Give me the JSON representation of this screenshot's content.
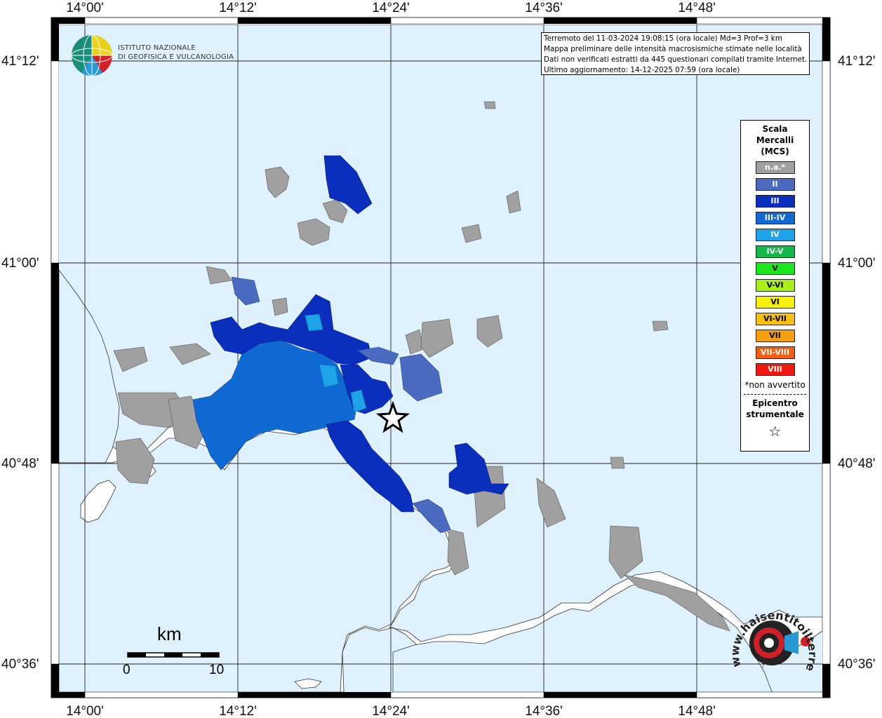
{
  "map": {
    "top_ticks": [
      "14°00'",
      "14°12'",
      "14°24'",
      "14°36'",
      "14°48'"
    ],
    "bottom_ticks": [
      "14°00'",
      "14°12'",
      "14°24'",
      "14°36'",
      "14°48'"
    ],
    "left_ticks": [
      "41°12'",
      "41°00'",
      "40°48'",
      "40°36'"
    ],
    "right_ticks": [
      "41°12'",
      "41°00'",
      "40°48'",
      "40°36'"
    ],
    "colors": {
      "sea": "#dff1fc",
      "land": "#ffffff",
      "na": "#a0a0a0",
      "II": "#4a6bc0",
      "III": "#0a2fbd",
      "III-IV": "#0f6ad4",
      "IV": "#1ea3e8"
    }
  },
  "info": {
    "line1": "Terremoto del 11-03-2024 19:08:15 (ora locale) Md=3 Prof=3 km",
    "line2": "Mappa preliminare delle intensità macrosismiche stimate nelle località",
    "line3": "Dati non verificati estratti da 445 questionari compilati tramite Internet.",
    "line4": "Ultimo aggiornamento: 14-12-2025 07:59 (ora locale)"
  },
  "legend": {
    "title1": "Scala",
    "title2": "Mercalli",
    "title3": "(MCS)",
    "items": [
      {
        "label": "n.a.*",
        "color": "#a0a0a0"
      },
      {
        "label": "II",
        "color": "#4a6bc0"
      },
      {
        "label": "III",
        "color": "#0a2fbd"
      },
      {
        "label": "III-IV",
        "color": "#0f6ad4"
      },
      {
        "label": "IV",
        "color": "#1ea3e8"
      },
      {
        "label": "IV-V",
        "color": "#14b84a"
      },
      {
        "label": "V",
        "color": "#1ee61e"
      },
      {
        "label": "V-VI",
        "color": "#aaee1a"
      },
      {
        "label": "VI",
        "color": "#f6f00a"
      },
      {
        "label": "VI-VII",
        "color": "#f6c010"
      },
      {
        "label": "VII",
        "color": "#f6a010"
      },
      {
        "label": "VII-VIII",
        "color": "#f06010"
      },
      {
        "label": "VIII",
        "color": "#ee1a10"
      }
    ],
    "na_note": "*non avvertito",
    "epicentro1": "Epicentro",
    "epicentro2": "strumentale",
    "star": "☆"
  },
  "logo": {
    "line1": "ISTITUTO NAZIONALE",
    "line2": "DI GEOFISICA E VULCANOLOGIA"
  },
  "scalebar": {
    "unit": "km",
    "start": "0",
    "end": "10"
  },
  "hsit": {
    "text": "www.haisentitoilterremoto.it"
  }
}
